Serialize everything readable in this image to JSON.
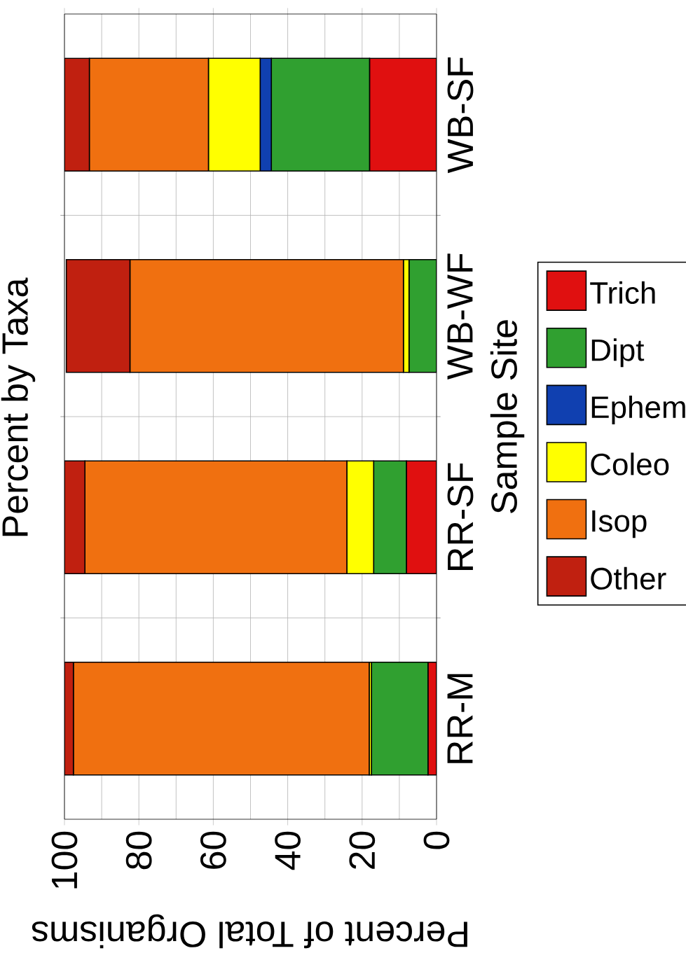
{
  "chart_data": {
    "type": "bar",
    "stacked": true,
    "orientation": "horizontal",
    "title": "Percent by Taxa",
    "xlabel": "Percent of Total Organisms",
    "ylabel": "Sample Site",
    "categories": [
      "WB-SF",
      "WB-WF",
      "RR-SF",
      "RR-M"
    ],
    "series": [
      {
        "name": "Trich",
        "color": "#e01010",
        "values": [
          18.0,
          null,
          8.1,
          2.3
        ]
      },
      {
        "name": "Dipt",
        "color": "#30a030",
        "values": [
          26.4,
          7.4,
          8.8,
          15.2
        ]
      },
      {
        "name": "Ephem",
        "color": "#1040b0",
        "values": [
          3.0,
          null,
          null,
          null
        ]
      },
      {
        "name": "Coleo",
        "color": "#ffff00",
        "values": [
          13.9,
          1.5,
          7.2,
          0.6
        ]
      },
      {
        "name": "Isop",
        "color": "#f07010",
        "values": [
          32.0,
          73.5,
          70.4,
          79.5
        ]
      },
      {
        "name": "Other",
        "color": "#c02010",
        "values": [
          6.7,
          17.1,
          5.5,
          2.4
        ]
      }
    ],
    "xlim": [
      100,
      0
    ],
    "xticks": [
      0,
      20,
      40,
      60,
      80,
      100
    ],
    "grid": true,
    "legend": "right"
  }
}
